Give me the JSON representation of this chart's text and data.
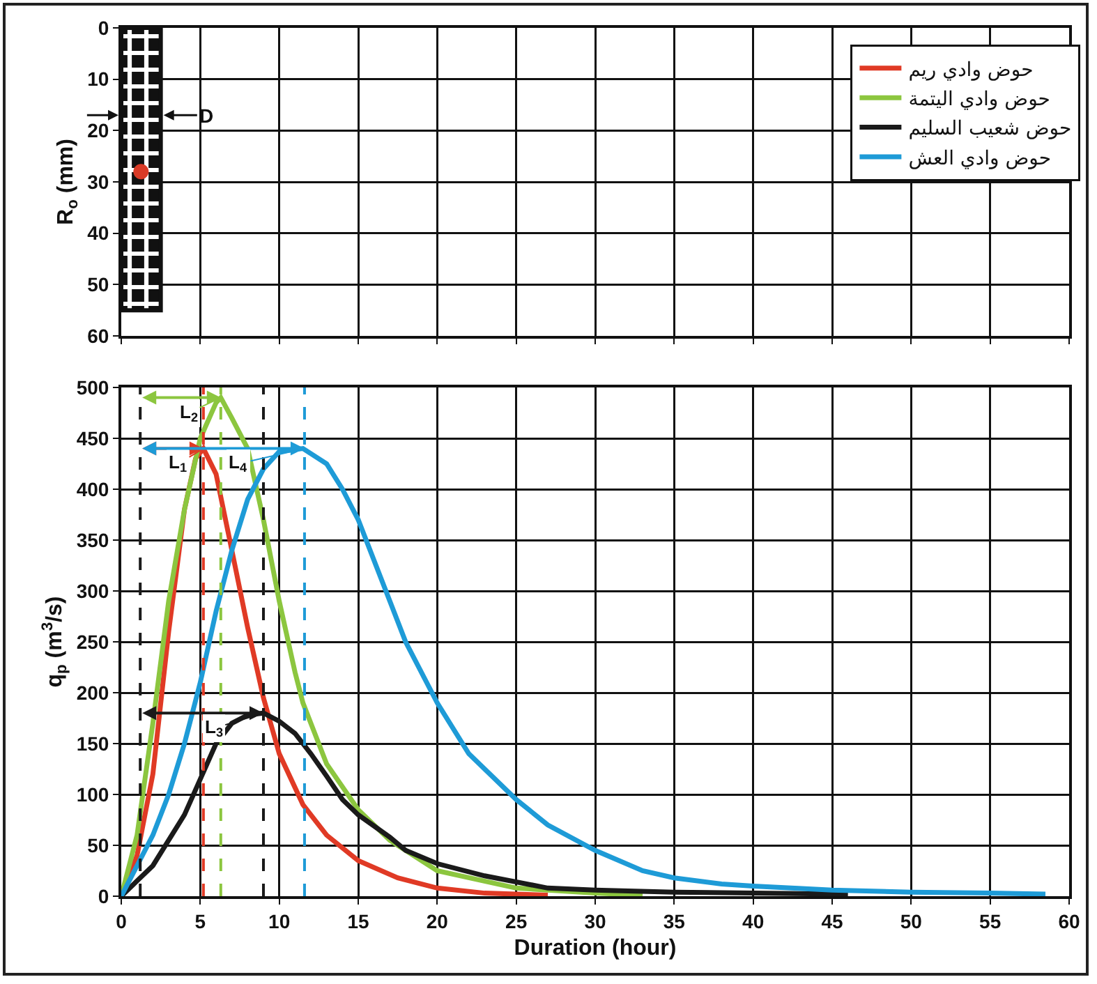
{
  "chart_data": [
    {
      "type": "histogram",
      "ylabel": "R$_{o}$ (mm)",
      "bins": [
        0,
        2.5
      ],
      "values": [
        55
      ],
      "color": "#111111",
      "series": [
        {
          "type": "scatter",
          "x": [
            1.25
          ],
          "values": [
            28
          ],
          "color": "#d93a26"
        }
      ],
      "marker": "circle",
      "annotations": [
        {
          "text": "D",
          "x": 2.5,
          "y": 17
        }
      ],
      "xlim": [
        0,
        60
      ],
      "xticks": [
        0,
        5,
        10,
        15,
        20,
        25,
        30,
        35,
        40,
        45,
        50,
        55,
        60
      ],
      "ylim": [
        60,
        0
      ],
      "yticks": [
        0,
        10,
        20,
        30,
        40,
        50,
        60
      ],
      "grid": true,
      "tick_labels": "y"
    },
    {
      "type": "line",
      "xlabel": "Duration (hour)",
      "ylabel": "q$_{p}$ (m$^{3}$/s)",
      "series": [
        {
          "name": "حوض وادي ريم",
          "color": "#e03a25",
          "x": [
            0,
            1,
            2,
            3,
            4,
            4.7,
            5.2,
            6,
            7,
            8,
            9,
            10,
            11.5,
            13,
            15,
            17.5,
            20,
            23,
            27
          ],
          "values": [
            0,
            40,
            120,
            260,
            380,
            430,
            440,
            415,
            340,
            264,
            195,
            140,
            90,
            60,
            35,
            18,
            8,
            3,
            1
          ]
        },
        {
          "name": "حوض وادي اليتمة",
          "color": "#8cc63f",
          "x": [
            0,
            1,
            2,
            3,
            4,
            5,
            6,
            6.3,
            7,
            8,
            9,
            10,
            11,
            11.5,
            13,
            15,
            17,
            20,
            25,
            30,
            33
          ],
          "values": [
            0,
            60,
            170,
            290,
            380,
            450,
            485,
            490,
            470,
            440,
            370,
            290,
            220,
            190,
            130,
            85,
            55,
            25,
            8,
            3,
            1
          ]
        },
        {
          "name": "حوض شعيب السليم",
          "color": "#1a1a1a",
          "x": [
            0,
            1,
            2,
            3,
            4,
            5,
            6,
            7,
            8,
            9,
            10,
            11,
            12,
            13,
            14,
            15,
            17,
            18,
            20,
            23,
            27,
            30,
            35,
            40,
            46
          ],
          "values": [
            0,
            15,
            30,
            55,
            80,
            115,
            150,
            170,
            178,
            180,
            172,
            160,
            140,
            118,
            95,
            80,
            58,
            45,
            32,
            20,
            8,
            6,
            4,
            3,
            2
          ]
        },
        {
          "name": "حوض وادي العش",
          "color": "#1e9bd7",
          "x": [
            0,
            2,
            3,
            4,
            5,
            6,
            7,
            8,
            9,
            10,
            11.5,
            13,
            14,
            15,
            17,
            18,
            20,
            22,
            25,
            27,
            30,
            33,
            35,
            38,
            40,
            45,
            50,
            55,
            58.5
          ],
          "values": [
            0,
            60,
            100,
            150,
            210,
            280,
            340,
            390,
            420,
            437,
            440,
            425,
            400,
            370,
            290,
            250,
            190,
            140,
            95,
            70,
            45,
            25,
            18,
            12,
            10,
            6,
            4,
            3,
            2
          ]
        }
      ],
      "annotations": [
        {
          "text": "L$_{1}$",
          "x": 5.2,
          "y": 440
        },
        {
          "text": "L$_{2}$",
          "x": 6.3,
          "y": 490
        },
        {
          "text": "L$_{3}$",
          "x": 9,
          "y": 180
        },
        {
          "text": "L$_{4}$",
          "x": 11.6,
          "y": 440
        }
      ],
      "ref_lines": [
        {
          "axis": "x",
          "value": 1.2,
          "color": "#1a1a1a",
          "line_style": "dashed"
        },
        {
          "axis": "x",
          "value": 5.2,
          "color": "#e03a25",
          "line_style": "dashed"
        },
        {
          "axis": "x",
          "value": 6.3,
          "color": "#8cc63f",
          "line_style": "dashed"
        },
        {
          "axis": "x",
          "value": 9,
          "color": "#1a1a1a",
          "line_style": "dashed"
        },
        {
          "axis": "x",
          "value": 11.6,
          "color": "#1e9bd7",
          "line_style": "dashed"
        }
      ],
      "xlim": [
        0,
        60
      ],
      "xticks": [
        0,
        5,
        10,
        15,
        20,
        25,
        30,
        35,
        40,
        45,
        50,
        55,
        60
      ],
      "ylim": [
        0,
        500
      ],
      "yticks": [
        0,
        50,
        100,
        150,
        200,
        250,
        300,
        350,
        400,
        450,
        500
      ],
      "grid": true,
      "legend": "top right",
      "line_style": "solid"
    }
  ]
}
